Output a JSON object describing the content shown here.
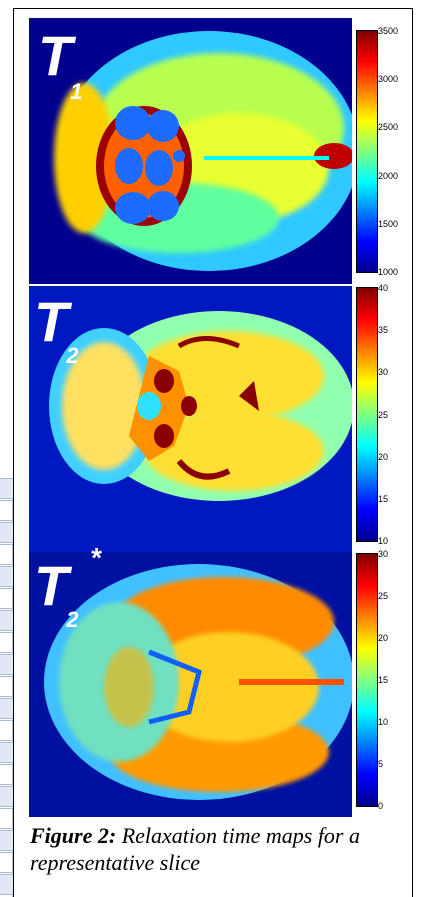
{
  "panels": [
    {
      "key": "t1",
      "label_main": "T",
      "label_sub": "1",
      "label_sup": "",
      "colorbar_ticks": [
        "3500",
        "3000",
        "2500",
        "2000",
        "1500",
        "1000"
      ]
    },
    {
      "key": "t2",
      "label_main": "T",
      "label_sub": "2",
      "label_sup": "",
      "colorbar_ticks": [
        "40",
        "35",
        "30",
        "25",
        "20",
        "15",
        "10"
      ]
    },
    {
      "key": "t2star",
      "label_main": "T",
      "label_sub": "2",
      "label_sup": "*",
      "colorbar_ticks": [
        "30",
        "25",
        "20",
        "15",
        "10",
        "5",
        "0"
      ]
    }
  ],
  "caption": {
    "figure_label": "Figure  2:",
    "text": " Relaxation time maps for a representative slice"
  },
  "colors": {
    "jet_low": "#00008f",
    "jet_high": "#800000",
    "background": "#ffffff"
  }
}
